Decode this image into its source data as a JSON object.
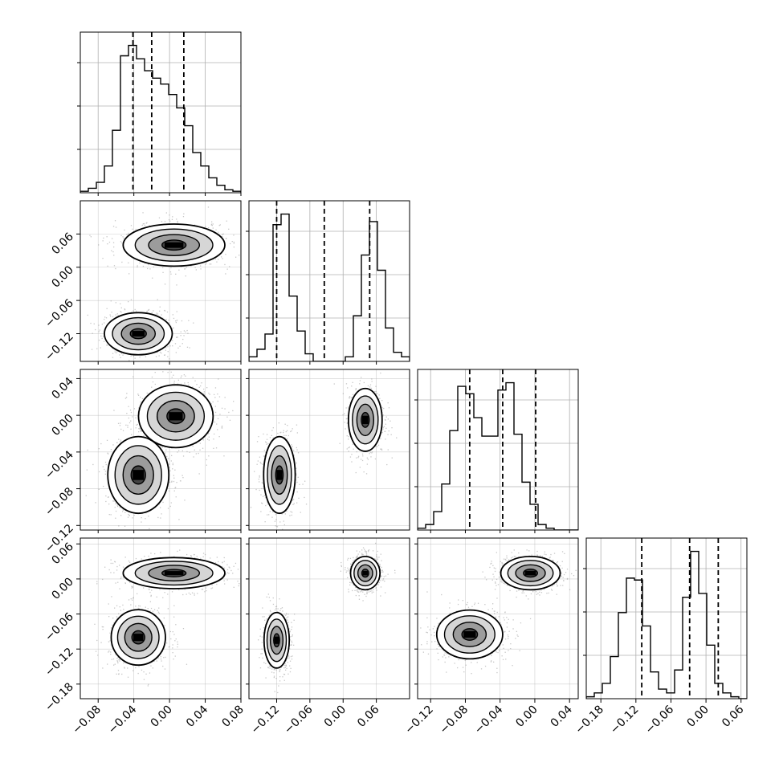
{
  "figure": {
    "type": "corner-plot",
    "grid": true
  },
  "chart_data": {
    "type": "corner",
    "parameters": 4,
    "diagonal": [
      {
        "row": 0,
        "col": 0,
        "type": "histogram",
        "xlim": [
          -0.1,
          0.08
        ],
        "bins": 20,
        "counts": [
          1,
          3,
          7,
          18,
          42,
          92,
          99,
          90,
          82,
          77,
          73,
          66,
          57,
          45,
          27,
          18,
          10,
          5,
          2,
          1
        ],
        "quantiles": [
          -0.041,
          -0.02,
          0.016
        ],
        "yticks": [],
        "xtick_labels": []
      },
      {
        "row": 1,
        "col": 1,
        "type": "histogram",
        "xlim": [
          -0.17,
          0.12
        ],
        "bins": 20,
        "counts": [
          3,
          8,
          18,
          90,
          97,
          43,
          20,
          5,
          0,
          0,
          0,
          0,
          3,
          30,
          70,
          92,
          60,
          22,
          6,
          3
        ],
        "quantiles": [
          -0.12,
          -0.034,
          0.048
        ],
        "yticks": [],
        "xtick_labels": []
      },
      {
        "row": 2,
        "col": 2,
        "type": "histogram",
        "xlim": [
          -0.135,
          0.05
        ],
        "bins": 20,
        "counts": [
          1,
          3,
          10,
          25,
          54,
          78,
          74,
          61,
          51,
          51,
          76,
          80,
          52,
          26,
          14,
          3,
          1,
          0,
          0,
          0
        ],
        "quantiles": [
          -0.075,
          -0.037,
          0.001
        ],
        "yticks": [],
        "xtick_labels": []
      },
      {
        "row": 3,
        "col": 3,
        "type": "histogram",
        "xlim": [
          -0.205,
          0.07
        ],
        "bins": 20,
        "counts": [
          1,
          3,
          8,
          22,
          45,
          63,
          62,
          38,
          14,
          5,
          3,
          15,
          53,
          77,
          55,
          28,
          8,
          3,
          1,
          0
        ],
        "quantiles": [
          -0.11,
          -0.028,
          0.021
        ],
        "yticks": [],
        "xtick_labels": [
          "−0.18",
          "−0.12",
          "−0.06",
          "0.00",
          "0.06"
        ]
      }
    ],
    "panels": [
      {
        "row": 1,
        "col": 0,
        "type": "2d-density",
        "x_range": [
          -0.1,
          0.08
        ],
        "y_range": [
          -0.17,
          0.12
        ],
        "modes": [
          {
            "x": -0.035,
            "y": -0.12,
            "sx": 0.02,
            "sy": 0.02
          },
          {
            "x": 0.005,
            "y": 0.04,
            "sx": 0.03,
            "sy": 0.02
          }
        ]
      },
      {
        "row": 2,
        "col": 0,
        "type": "2d-density",
        "x_range": [
          -0.1,
          0.08
        ],
        "y_range": [
          -0.125,
          0.05
        ],
        "modes": [
          {
            "x": -0.035,
            "y": -0.065,
            "sx": 0.018,
            "sy": 0.022
          },
          {
            "x": 0.007,
            "y": -0.001,
            "sx": 0.022,
            "sy": 0.018
          }
        ]
      },
      {
        "row": 2,
        "col": 1,
        "type": "2d-density",
        "x_range": [
          -0.17,
          0.12
        ],
        "y_range": [
          -0.125,
          0.05
        ],
        "modes": [
          {
            "x": -0.115,
            "y": -0.065,
            "sx": 0.015,
            "sy": 0.022
          },
          {
            "x": 0.04,
            "y": -0.005,
            "sx": 0.016,
            "sy": 0.018
          }
        ]
      },
      {
        "row": 3,
        "col": 0,
        "type": "2d-density",
        "x_range": [
          -0.1,
          0.08
        ],
        "y_range": [
          -0.205,
          0.07
        ],
        "modes": [
          {
            "x": -0.035,
            "y": -0.1,
            "sx": 0.016,
            "sy": 0.025
          },
          {
            "x": 0.005,
            "y": 0.01,
            "sx": 0.03,
            "sy": 0.014
          }
        ]
      },
      {
        "row": 3,
        "col": 1,
        "type": "2d-density",
        "x_range": [
          -0.17,
          0.12
        ],
        "y_range": [
          -0.205,
          0.07
        ],
        "modes": [
          {
            "x": -0.12,
            "y": -0.105,
            "sx": 0.012,
            "sy": 0.025
          },
          {
            "x": 0.04,
            "y": 0.01,
            "sx": 0.014,
            "sy": 0.015
          }
        ]
      },
      {
        "row": 3,
        "col": 2,
        "type": "2d-density",
        "x_range": [
          -0.135,
          0.05
        ],
        "y_range": [
          -0.205,
          0.07
        ],
        "modes": [
          {
            "x": -0.075,
            "y": -0.095,
            "sx": 0.02,
            "sy": 0.022
          },
          {
            "x": -0.005,
            "y": 0.01,
            "sx": 0.018,
            "sy": 0.015
          }
        ]
      }
    ],
    "x_tick_labels": [
      [
        "−0.08",
        "−0.04",
        "0.00",
        "0.04",
        "0.08"
      ],
      [
        "−0.12",
        "−0.06",
        "0.00",
        "0.06"
      ],
      [
        "−0.12",
        "−0.08",
        "−0.04",
        "0.00",
        "0.04"
      ],
      [
        "−0.18",
        "−0.12",
        "−0.06",
        "0.00",
        "0.06"
      ]
    ],
    "y_tick_labels": [
      [],
      [
        "0.06",
        "0.00",
        "−0.06",
        "−0.12"
      ],
      [
        "0.04",
        "0.00",
        "−0.04",
        "−0.08",
        "−0.12"
      ],
      [
        "0.06",
        "0.00",
        "−0.06",
        "−0.12",
        "−0.18"
      ]
    ],
    "x_tick_values": [
      [
        -0.08,
        -0.04,
        0.0,
        0.04,
        0.08
      ],
      [
        -0.12,
        -0.06,
        0.0,
        0.06
      ],
      [
        -0.12,
        -0.08,
        -0.04,
        0.0,
        0.04
      ],
      [
        -0.18,
        -0.12,
        -0.06,
        0.0,
        0.06
      ]
    ],
    "y_tick_values": [
      [],
      [
        0.06,
        0.0,
        -0.06,
        -0.12
      ],
      [
        0.04,
        0.0,
        -0.04,
        -0.08,
        -0.12
      ],
      [
        0.06,
        0.0,
        -0.06,
        -0.12,
        -0.18
      ]
    ],
    "colors": {
      "line": "#000000",
      "scatter": "#9a9a9a",
      "grid": "#b0b0b0",
      "frame": "#000000"
    }
  }
}
